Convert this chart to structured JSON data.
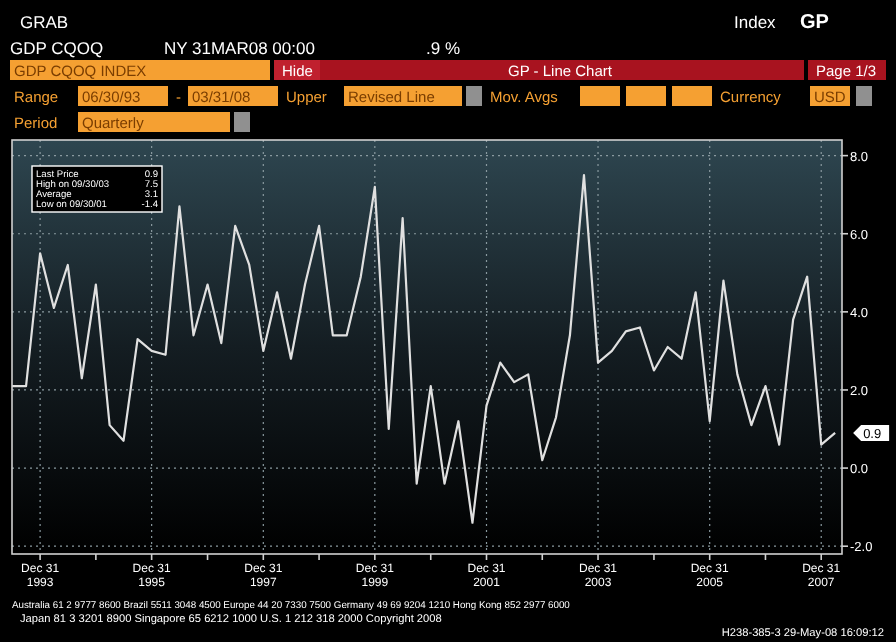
{
  "chart_data": {
    "type": "line",
    "title": "GP - Line Chart",
    "x": [
      "1993-06-30",
      "1993-09-30",
      "1993-12-31",
      "1994-03-31",
      "1994-06-30",
      "1994-09-30",
      "1994-12-31",
      "1995-03-31",
      "1995-06-30",
      "1995-09-30",
      "1995-12-31",
      "1996-03-31",
      "1996-06-30",
      "1996-09-30",
      "1996-12-31",
      "1997-03-31",
      "1997-06-30",
      "1997-09-30",
      "1997-12-31",
      "1998-03-31",
      "1998-06-30",
      "1998-09-30",
      "1998-12-31",
      "1999-03-31",
      "1999-06-30",
      "1999-09-30",
      "1999-12-31",
      "2000-03-31",
      "2000-06-30",
      "2000-09-30",
      "2000-12-31",
      "2001-03-31",
      "2001-06-30",
      "2001-09-30",
      "2001-12-31",
      "2002-03-31",
      "2002-06-30",
      "2002-09-30",
      "2002-12-31",
      "2003-03-31",
      "2003-06-30",
      "2003-09-30",
      "2003-12-31",
      "2004-03-31",
      "2004-06-30",
      "2004-09-30",
      "2004-12-31",
      "2005-03-31",
      "2005-06-30",
      "2005-09-30",
      "2005-12-31",
      "2006-03-31",
      "2006-06-30",
      "2006-09-30",
      "2006-12-31",
      "2007-03-31",
      "2007-06-30",
      "2007-09-30",
      "2007-12-31",
      "2008-03-31"
    ],
    "series": [
      {
        "color": "#e0e0e0",
        "values": [
          2.1,
          2.1,
          5.5,
          4.1,
          5.2,
          2.3,
          4.7,
          1.1,
          0.7,
          3.3,
          3.0,
          2.9,
          6.7,
          3.4,
          4.7,
          3.2,
          6.2,
          5.2,
          3.0,
          4.5,
          2.8,
          4.7,
          6.2,
          3.4,
          3.4,
          4.9,
          7.2,
          1.0,
          6.4,
          -0.4,
          2.1,
          -0.4,
          1.2,
          -1.4,
          1.6,
          2.7,
          2.2,
          2.4,
          0.2,
          1.3,
          3.4,
          7.5,
          2.7,
          3.0,
          3.5,
          3.6,
          2.5,
          3.1,
          2.8,
          4.5,
          1.2,
          4.8,
          2.4,
          1.1,
          2.1,
          0.6,
          3.8,
          4.9,
          0.6,
          0.9
        ]
      }
    ],
    "xlim": [
      "1993-06-30",
      "2008-05-15"
    ],
    "xticks": [
      {
        "value": "1993-12-31",
        "label": "Dec 31\n1993"
      },
      {
        "value": "1994-12-31",
        "label": null
      },
      {
        "value": "1995-12-31",
        "label": "Dec 31\n1995"
      },
      {
        "value": "1996-12-31",
        "label": null
      },
      {
        "value": "1997-12-31",
        "label": "Dec 31\n1997"
      },
      {
        "value": "1998-12-31",
        "label": null
      },
      {
        "value": "1999-12-31",
        "label": "Dec 31\n1999"
      },
      {
        "value": "2000-12-31",
        "label": null
      },
      {
        "value": "2001-12-31",
        "label": "Dec 31\n2001"
      },
      {
        "value": "2002-12-31",
        "label": null
      },
      {
        "value": "2003-12-31",
        "label": "Dec 31\n2003"
      },
      {
        "value": "2004-12-31",
        "label": null
      },
      {
        "value": "2005-12-31",
        "label": "Dec 31\n2005"
      },
      {
        "value": "2006-12-31",
        "label": null
      },
      {
        "value": "2007-12-31",
        "label": "Dec 31\n2007"
      }
    ],
    "ylim": [
      -2.2,
      8.4
    ],
    "yticks": [
      {
        "value": 8,
        "label": "8.0"
      },
      {
        "value": 6,
        "label": "6.0"
      },
      {
        "value": 4,
        "label": "4.0"
      },
      {
        "value": 2,
        "label": "2.0"
      },
      {
        "value": 0,
        "label": "0.0"
      },
      {
        "value": -2,
        "label": "-2.0"
      }
    ],
    "grid": true,
    "marker": "none",
    "line_style": "solid",
    "annotations": [
      "GRAB",
      "GDP CQOQ",
      "NY 31MAR08 00:00",
      ".9 %",
      "Index",
      "GP",
      "GDP CQOQ INDEX",
      "Hide",
      "Page 1/3",
      "Range",
      "06/30/93",
      "-",
      "03/31/08",
      "Upper",
      "Revised Line",
      "Mov. Avgs",
      "Currency",
      "USD",
      "Period",
      "Quarterly",
      "Last Price",
      "0.9",
      "High on 09/30/03",
      "7.5",
      "Average",
      "3.1",
      "Low on 09/30/01",
      "-1.4",
      {
        "text": "0.9",
        "x": "2008-03-31",
        "y": 0.9
      },
      "Australia 61 2 9777 8600 Brazil 5511 3048 4500 Europe 44 20 7330 7500 Germany 49 69 9204 1210 Hong Kong 852 2977 6000",
      "Japan 81 3 3201 8900      Singapore 65 6212 1000      U.S. 1 212 318 2000      Copyright 2008",
      "H238-385-3 29-May-08 16:09:12"
    ]
  }
}
